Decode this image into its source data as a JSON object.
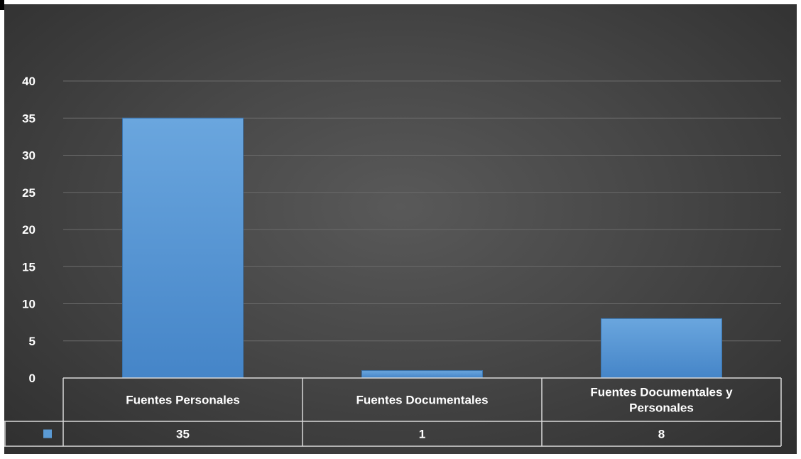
{
  "chart_data": {
    "type": "bar",
    "title": "",
    "xlabel": "",
    "ylabel": "",
    "categories": [
      "Fuentes Personales",
      "Fuentes Documentales",
      "Fuentes Documentales y Personales"
    ],
    "series": [
      {
        "values": [
          35,
          1,
          8
        ],
        "color": "#5b9bd5"
      }
    ],
    "ylim": [
      0,
      40
    ],
    "yticks": [
      "0",
      "5",
      "10",
      "15",
      "20",
      "25",
      "30",
      "35",
      "40"
    ],
    "table_values": [
      "35",
      "1",
      "8"
    ],
    "grid": true,
    "legend": "data-table",
    "background": "#474747"
  }
}
